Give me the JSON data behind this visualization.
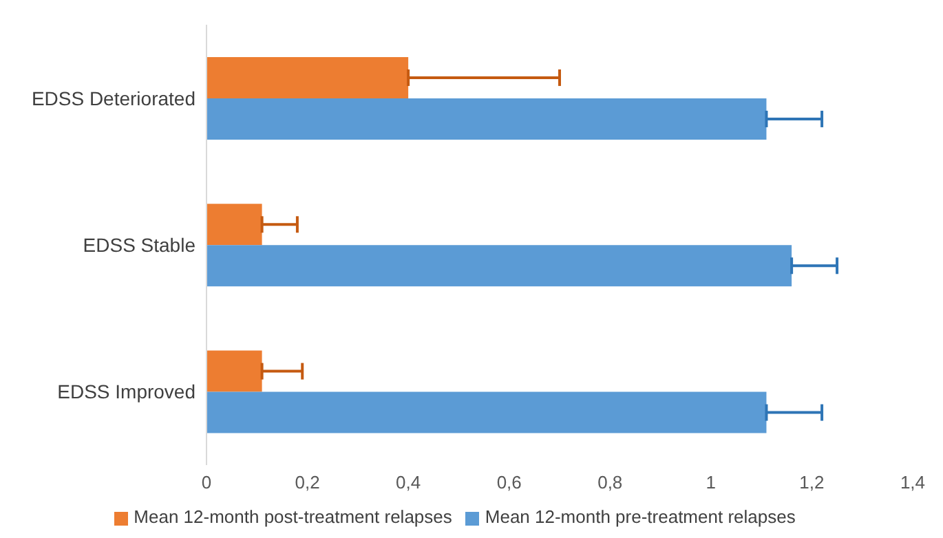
{
  "chart_data": {
    "type": "bar",
    "orientation": "horizontal",
    "categories": [
      "EDSS Deteriorated",
      "EDSS Stable",
      "EDSS Improved"
    ],
    "series": [
      {
        "name": "Mean 12-month post-treatment relapses",
        "color": "#ed7d31",
        "values": [
          0.4,
          0.11,
          0.11
        ],
        "errors": [
          [
            0.4,
            0.7
          ],
          [
            0.11,
            0.18
          ],
          [
            0.11,
            0.19
          ]
        ]
      },
      {
        "name": "Mean 12-month pre-treatment relapses",
        "color": "#5b9bd5",
        "values": [
          1.11,
          1.16,
          1.11
        ],
        "errors": [
          [
            1.11,
            1.22
          ],
          [
            1.16,
            1.25
          ],
          [
            1.11,
            1.22
          ]
        ]
      }
    ],
    "xlim": [
      0,
      1.4
    ],
    "xticks": [
      0,
      {
        "value": 0.2,
        "label": "0,2"
      },
      {
        "value": 0.4,
        "label": "0,4"
      },
      {
        "value": 0.6,
        "label": "0,6"
      },
      {
        "value": 0.8,
        "label": "0,8"
      },
      1,
      {
        "value": 1.2,
        "label": "1,2"
      },
      {
        "value": 1.4,
        "label": "1,4"
      }
    ],
    "legend": "bottom"
  }
}
